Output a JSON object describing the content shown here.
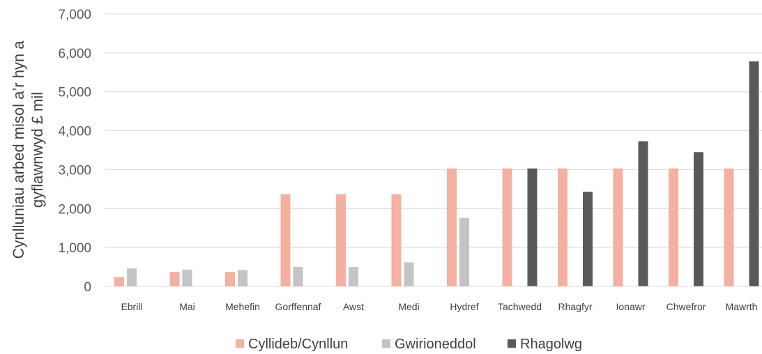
{
  "chart_data": {
    "type": "bar",
    "ylabel_lines": [
      "Cynlluniau arbed misol a’r hyn a",
      "gyflawnwyd £ mil"
    ],
    "ylim": [
      0,
      7000
    ],
    "y_ticks": [
      0,
      1000,
      2000,
      3000,
      4000,
      5000,
      6000,
      7000
    ],
    "y_tick_labels": [
      "0",
      "1,000",
      "2,000",
      "3,000",
      "4,000",
      "5,000",
      "6,000",
      "7,000"
    ],
    "grid": true,
    "legend_position": "bottom",
    "categories": [
      "Ebrill",
      "Mai",
      "Mehefin",
      "Gorffennaf",
      "Awst",
      "Medi",
      "Hydref",
      "Tachwedd",
      "Rhagfyr",
      "Ionawr",
      "Chwefror",
      "Mawrth"
    ],
    "series": [
      {
        "name": "Cyllideb/Cynllun",
        "color": "#f4b0a0",
        "values": [
          240,
          370,
          370,
          2370,
          2370,
          2370,
          3030,
          3030,
          3030,
          3030,
          3030,
          3030
        ]
      },
      {
        "name": "Gwirioneddol",
        "color": "#c4c4c4",
        "values": [
          460,
          430,
          420,
          500,
          500,
          620,
          1760,
          null,
          null,
          null,
          null,
          null
        ]
      },
      {
        "name": "Rhagolwg",
        "color": "#595959",
        "values": [
          null,
          null,
          null,
          null,
          null,
          null,
          null,
          3030,
          2430,
          3730,
          3450,
          5780
        ]
      }
    ]
  }
}
